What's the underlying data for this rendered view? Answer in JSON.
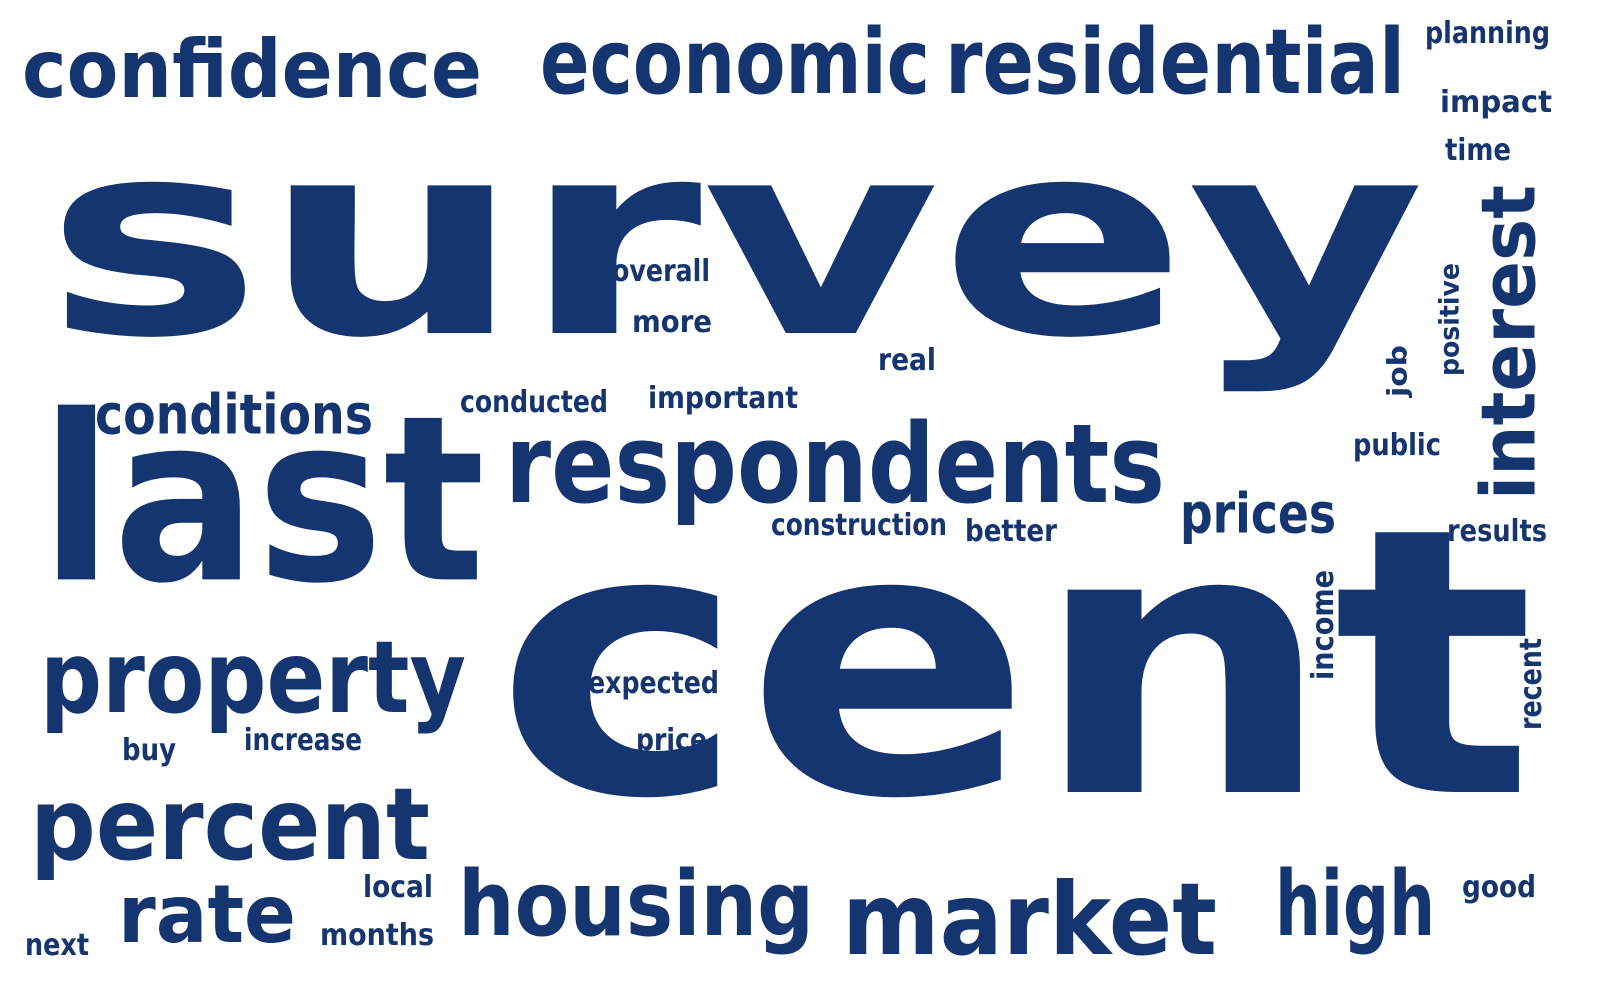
{
  "word_color": "#143570",
  "background_color": "#ffffff",
  "words": [
    {
      "text": "survey"
    },
    {
      "text": "cent"
    },
    {
      "text": "last"
    },
    {
      "text": "respondents"
    },
    {
      "text": "economic"
    },
    {
      "text": "residential"
    },
    {
      "text": "confidence"
    },
    {
      "text": "housing"
    },
    {
      "text": "market"
    },
    {
      "text": "property"
    },
    {
      "text": "percent"
    },
    {
      "text": "rate"
    },
    {
      "text": "interest"
    },
    {
      "text": "high"
    },
    {
      "text": "conditions"
    },
    {
      "text": "prices"
    },
    {
      "text": "planning"
    },
    {
      "text": "impact"
    },
    {
      "text": "time"
    },
    {
      "text": "overall"
    },
    {
      "text": "more"
    },
    {
      "text": "real"
    },
    {
      "text": "conducted"
    },
    {
      "text": "important"
    },
    {
      "text": "positive"
    },
    {
      "text": "job"
    },
    {
      "text": "public"
    },
    {
      "text": "construction"
    },
    {
      "text": "better"
    },
    {
      "text": "results"
    },
    {
      "text": "income"
    },
    {
      "text": "recent"
    },
    {
      "text": "expected"
    },
    {
      "text": "price"
    },
    {
      "text": "buy"
    },
    {
      "text": "increase"
    },
    {
      "text": "local"
    },
    {
      "text": "months"
    },
    {
      "text": "next"
    },
    {
      "text": "good"
    }
  ]
}
